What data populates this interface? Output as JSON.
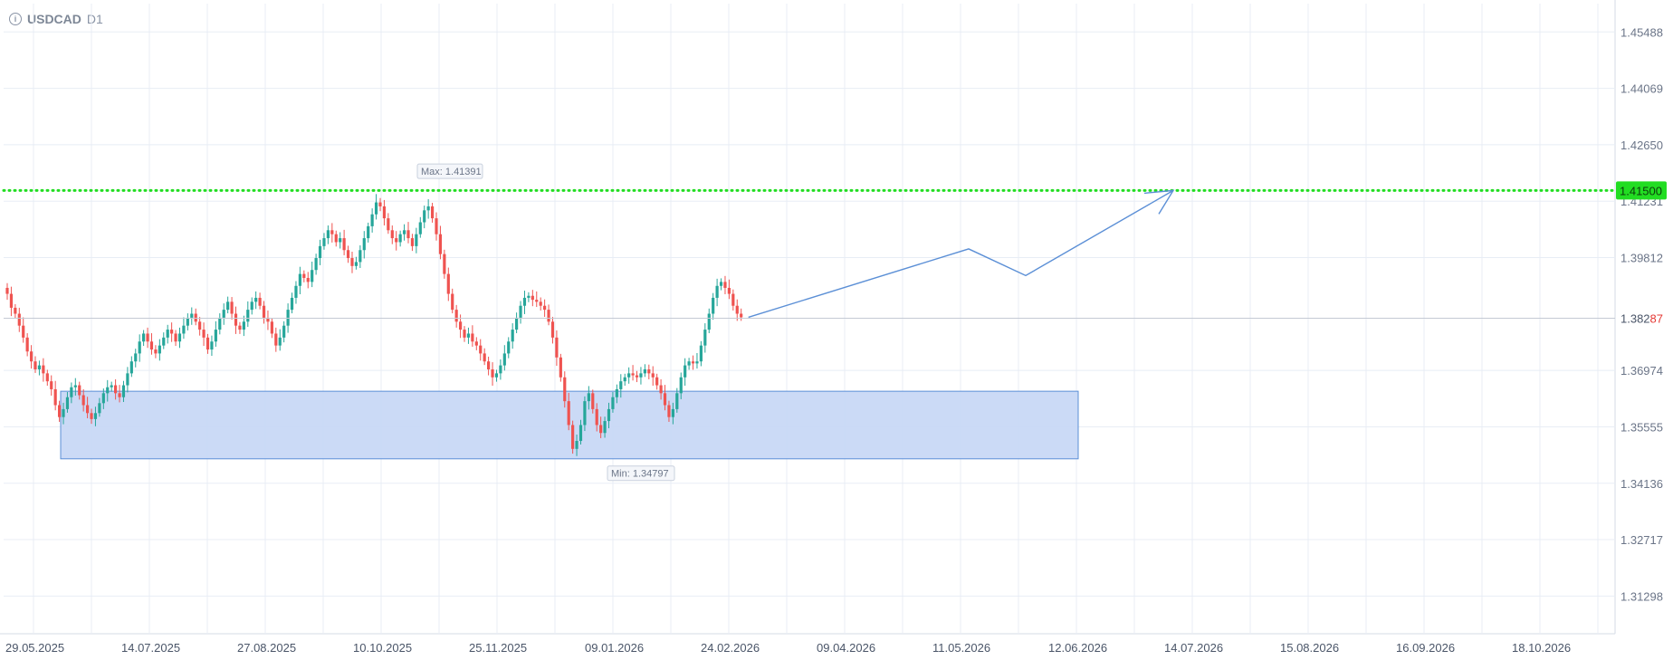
{
  "header": {
    "symbol": "USDCAD",
    "timeframe": "D1",
    "info_icon": "info-icon"
  },
  "chart_data": {
    "type": "candlestick",
    "title": "",
    "ylim": [
      1.3035,
      1.462
    ],
    "y_ticks": [
      "1.45488",
      "1.44069",
      "1.42650",
      "1.41231",
      "1.39812",
      "1.38287",
      "1.36974",
      "1.35555",
      "1.34136",
      "1.32717",
      "1.31298"
    ],
    "x_ticks": [
      "29.05.2025",
      "14.07.2025",
      "27.08.2025",
      "10.10.2025",
      "25.11.2025",
      "09.01.2026",
      "24.02.2026",
      "09.04.2026",
      "11.05.2026",
      "12.06.2026",
      "14.07.2026",
      "15.08.2026",
      "16.09.2026",
      "18.10.2026"
    ],
    "grid": true,
    "current_price": {
      "prefix": "1.382",
      "suffix": "87",
      "value": 1.38287
    },
    "resistance_level": {
      "label": "1.41500",
      "value": 1.415,
      "color": "#22dd22"
    },
    "max_label": {
      "text": "Max: 1.41391",
      "value": 1.41391
    },
    "min_label": {
      "text": "Min: 1.34797",
      "value": 1.34797
    },
    "support_zone": {
      "top": 1.3645,
      "bottom": 1.3475,
      "color": "#c8d8f5"
    },
    "forecast_path_prices": [
      1.3831,
      1.4003,
      1.3936,
      1.415
    ],
    "up_color": "#26a69a",
    "down_color": "#ef5350",
    "accent_color": "#5b8fd6",
    "close_series": [
      1.389,
      1.3855,
      1.384,
      1.381,
      1.378,
      1.3745,
      1.372,
      1.37,
      1.371,
      1.369,
      1.367,
      1.365,
      1.361,
      1.358,
      1.36,
      1.363,
      1.3655,
      1.366,
      1.3635,
      1.361,
      1.359,
      1.3575,
      1.359,
      1.3615,
      1.364,
      1.3655,
      1.366,
      1.364,
      1.363,
      1.366,
      1.369,
      1.372,
      1.374,
      1.377,
      1.379,
      1.377,
      1.375,
      1.374,
      1.376,
      1.378,
      1.38,
      1.379,
      1.377,
      1.379,
      1.381,
      1.383,
      1.384,
      1.382,
      1.38,
      1.378,
      1.375,
      1.377,
      1.38,
      1.383,
      1.385,
      1.387,
      1.384,
      1.381,
      1.38,
      1.382,
      1.385,
      1.387,
      1.388,
      1.386,
      1.383,
      1.382,
      1.379,
      1.376,
      1.378,
      1.381,
      1.385,
      1.388,
      1.391,
      1.394,
      1.393,
      1.392,
      1.395,
      1.398,
      1.401,
      1.403,
      1.405,
      1.404,
      1.402,
      1.403,
      1.4,
      1.398,
      1.396,
      1.397,
      1.4,
      1.403,
      1.406,
      1.409,
      1.412,
      1.411,
      1.408,
      1.405,
      1.403,
      1.402,
      1.404,
      1.405,
      1.403,
      1.401,
      1.404,
      1.407,
      1.41,
      1.411,
      1.408,
      1.404,
      1.399,
      1.394,
      1.389,
      1.385,
      1.382,
      1.38,
      1.378,
      1.379,
      1.377,
      1.376,
      1.374,
      1.372,
      1.37,
      1.368,
      1.369,
      1.371,
      1.374,
      1.377,
      1.38,
      1.383,
      1.386,
      1.388,
      1.3885,
      1.3875,
      1.387,
      1.386,
      1.385,
      1.382,
      1.378,
      1.373,
      1.368,
      1.362,
      1.356,
      1.35,
      1.352,
      1.356,
      1.362,
      1.364,
      1.36,
      1.356,
      1.354,
      1.357,
      1.36,
      1.363,
      1.365,
      1.367,
      1.368,
      1.369,
      1.3685,
      1.368,
      1.369,
      1.37,
      1.369,
      1.368,
      1.366,
      1.364,
      1.361,
      1.358,
      1.36,
      1.364,
      1.368,
      1.371,
      1.372,
      1.3715,
      1.372,
      1.376,
      1.38,
      1.384,
      1.388,
      1.391,
      1.392,
      1.3905,
      1.389,
      1.386,
      1.384,
      1.3831
    ]
  }
}
